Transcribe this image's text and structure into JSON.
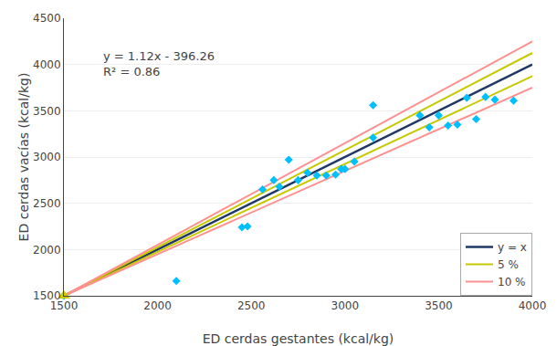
{
  "chart_data": {
    "type": "scatter",
    "xlabel": "ED cerdas gestantes (kcal/kg)",
    "ylabel": "ED cerdas vacías (kcal/kg)",
    "xlim": [
      1500,
      4000
    ],
    "ylim": [
      1500,
      4500
    ],
    "xticks": [
      1500,
      2000,
      2500,
      3000,
      3500,
      4000
    ],
    "yticks": [
      1500,
      2000,
      2500,
      3000,
      3500,
      4000,
      4500
    ],
    "grid": "y",
    "legend": "lower right",
    "annotations": [
      {
        "text": "y = 1.12x - 396.26\nR² = 0.86",
        "x": 1700,
        "y": 4180
      }
    ],
    "series": [
      {
        "name": "y = x",
        "type": "line",
        "color": "#1F3864",
        "x": [
          1500,
          4000
        ],
        "values": [
          1500,
          4000
        ]
      },
      {
        "name": "5 %",
        "type": "line",
        "color": "#C8C800",
        "x": [
          1500,
          4000
        ],
        "values": [
          1500,
          4125
        ]
      },
      {
        "name": "5 %",
        "type": "line",
        "color": "#C8C800",
        "x": [
          1500,
          4000
        ],
        "values": [
          1500,
          3875
        ]
      },
      {
        "name": "10 %",
        "type": "line",
        "color": "#FF9090",
        "x": [
          1500,
          4000
        ],
        "values": [
          1500,
          4250
        ]
      },
      {
        "name": "10 %",
        "type": "line",
        "color": "#FF9090",
        "x": [
          1500,
          4000
        ],
        "values": [
          1500,
          3750
        ]
      },
      {
        "type": "scatter",
        "marker": "diamond",
        "color": "#00BFFF",
        "x": [
          1500,
          2100,
          2450,
          2480,
          2560,
          2620,
          2650,
          2700,
          2750,
          2800,
          2850,
          2900,
          2950,
          2980,
          3000,
          3050,
          3150,
          3150,
          3400,
          3450,
          3500,
          3550,
          3600,
          3650,
          3700,
          3750,
          3800,
          3900
        ],
        "values": [
          1500,
          1660,
          2240,
          2250,
          2650,
          2750,
          2680,
          2970,
          2750,
          2830,
          2800,
          2800,
          2810,
          2870,
          2870,
          2950,
          3560,
          3210,
          3450,
          3320,
          3450,
          3340,
          3350,
          3640,
          3410,
          3650,
          3620,
          3610
        ]
      },
      {
        "type": "scatter",
        "marker": "triangle-up",
        "color": "#CCCC00",
        "x": [
          1500
        ],
        "values": [
          1500
        ]
      }
    ]
  }
}
